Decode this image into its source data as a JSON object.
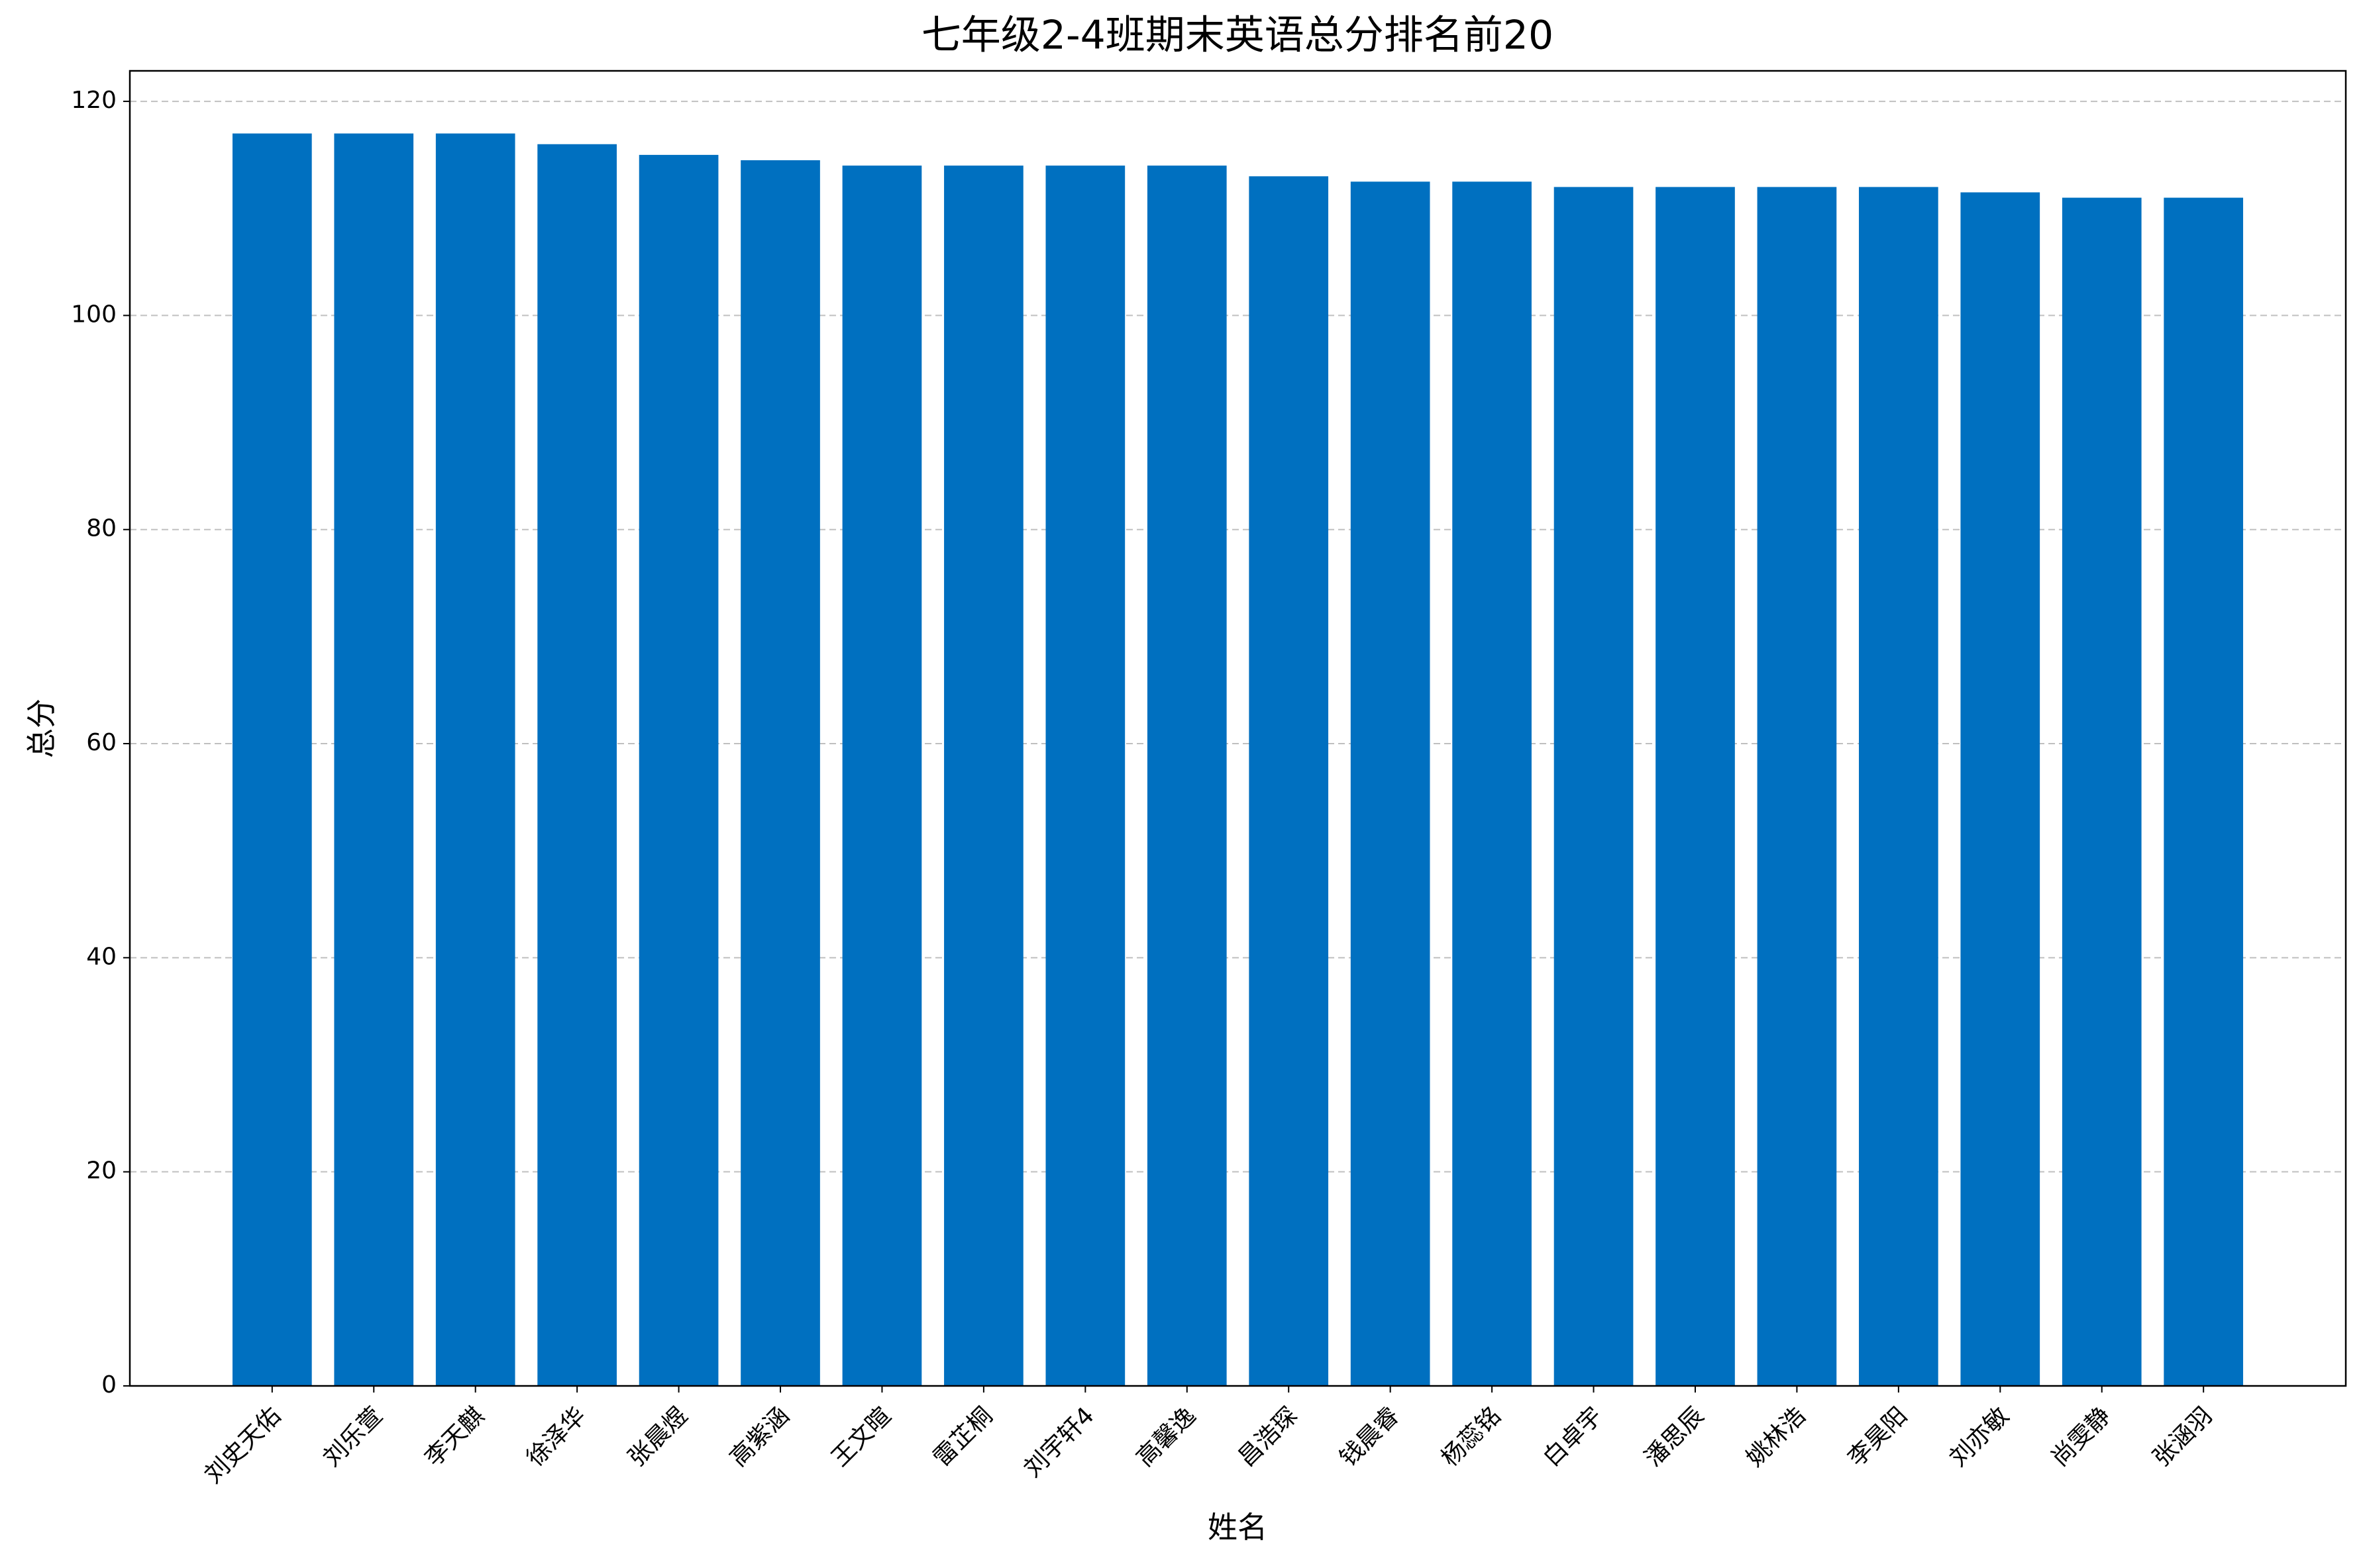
{
  "chart_data": {
    "type": "bar",
    "title": "七年级2-4班期末英语总分排名前20",
    "x_label": "姓名",
    "y_label": "总分",
    "categories": [
      "刘史天佑",
      "刘乐萱",
      "李天麒",
      "徐泽华",
      "张晨煜",
      "高紫涵",
      "王文暄",
      "雷芷桐",
      "刘宇轩4",
      "高馨逸",
      "昌浩琛",
      "钱晨睿",
      "杨蕊铭",
      "白卓宇",
      "潘思辰",
      "姚林浩",
      "李昊阳",
      "刘亦敏",
      "尚雯静",
      "张涵羽"
    ],
    "values": [
      117,
      117,
      117,
      116,
      115,
      114.5,
      114,
      114,
      114,
      114,
      113,
      112.5,
      112.5,
      112,
      112,
      112,
      112,
      111.5,
      111,
      111
    ],
    "color": "#0070c0",
    "ylim": [
      0,
      122.85
    ],
    "yticks": [
      0,
      20,
      40,
      60,
      80,
      100,
      120
    ],
    "grid": true
  }
}
